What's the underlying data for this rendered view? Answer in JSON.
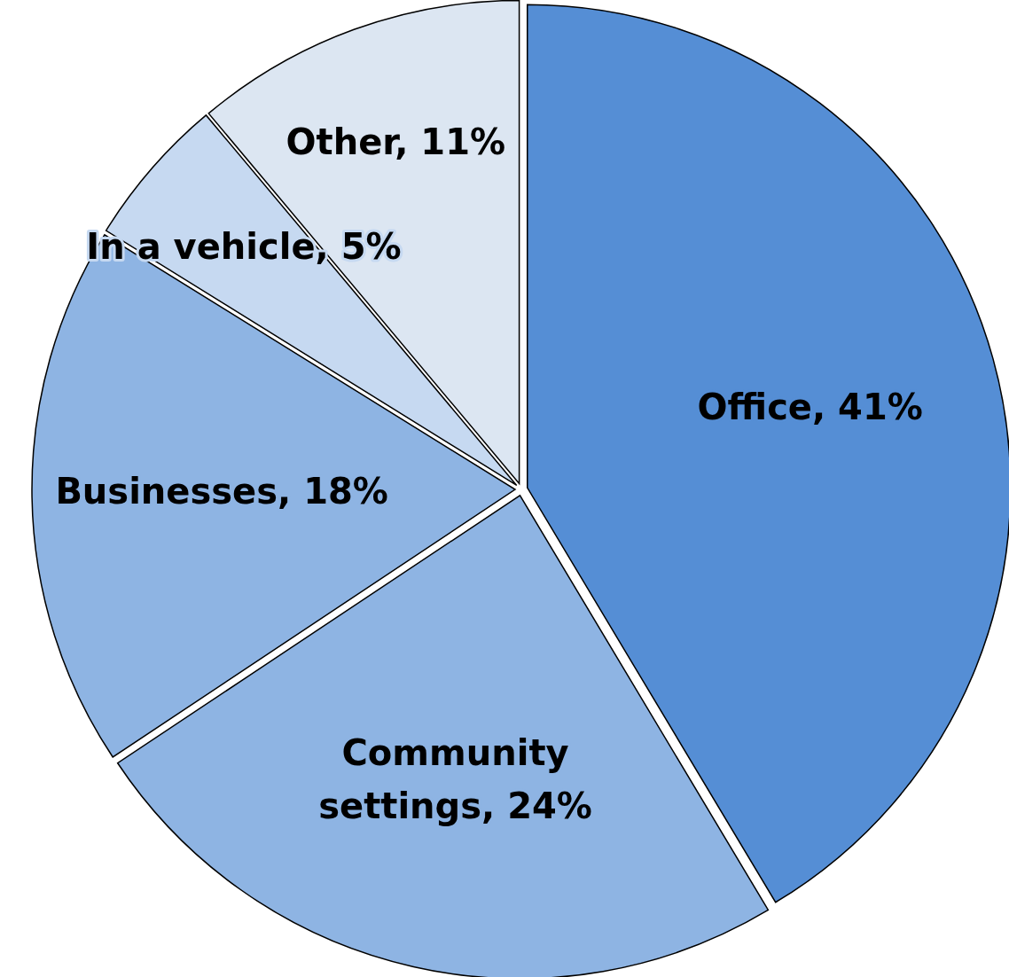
{
  "chart_data": {
    "type": "pie",
    "categories": [
      "Office",
      "Community settings",
      "Businesses",
      "In a vehicle",
      "Other"
    ],
    "values": [
      41,
      24,
      18,
      5,
      11
    ],
    "colors": [
      "#558ed5",
      "#8eb4e3",
      "#8eb4e3",
      "#c6d9f1",
      "#dce6f2"
    ],
    "value_labels": [
      "41%",
      "24%",
      "18%",
      "5%",
      "11%"
    ]
  }
}
